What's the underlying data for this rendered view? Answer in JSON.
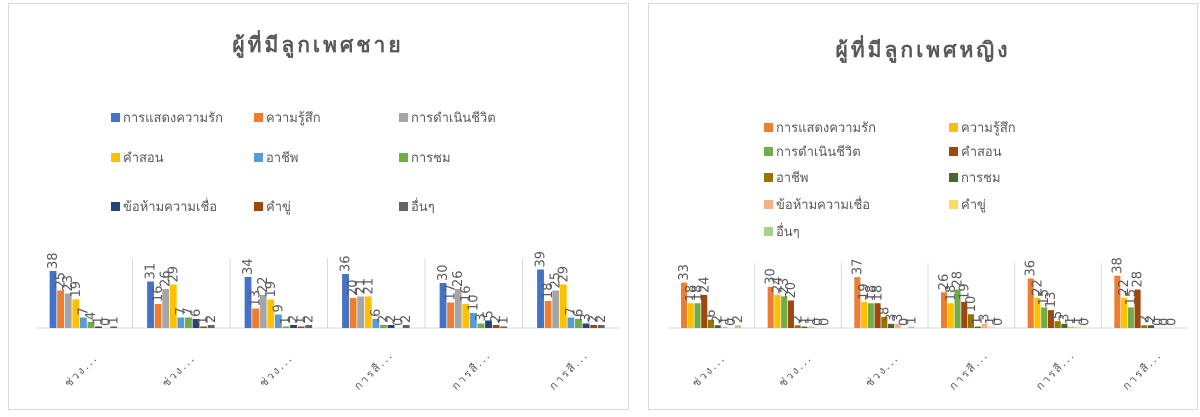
{
  "chart_data": [
    {
      "type": "bar",
      "title": "ผู้ที่มีลูกเพศชาย",
      "categories": [
        "ช่วง...",
        "ช่วง...",
        "ช่วง...",
        "การสื...",
        "การสื...",
        "การสื..."
      ],
      "ylim": [
        0,
        40
      ],
      "series": [
        {
          "name": "การแสดงความรัก",
          "color": "#4472c4",
          "values": [
            38,
            31,
            34,
            36,
            30,
            39
          ]
        },
        {
          "name": "ความรู้สึก",
          "color": "#ed7d31",
          "values": [
            25,
            16,
            13,
            20,
            17,
            18
          ]
        },
        {
          "name": "การดำเนินชีวิต",
          "color": "#a5a5a5",
          "values": [
            23,
            26,
            22,
            21,
            26,
            25
          ]
        },
        {
          "name": "คำสอน",
          "color": "#ffc000",
          "values": [
            19,
            29,
            19,
            21,
            16,
            29
          ]
        },
        {
          "name": "อาชีพ",
          "color": "#5b9bd5",
          "values": [
            7,
            7,
            9,
            6,
            10,
            7
          ]
        },
        {
          "name": "การชม",
          "color": "#70ad47",
          "values": [
            4,
            7,
            1,
            2,
            3,
            6
          ]
        },
        {
          "name": "ข้อห้ามความเชื่อ",
          "color": "#264478",
          "values": [
            1,
            6,
            2,
            2,
            5,
            3
          ]
        },
        {
          "name": "คำขู่",
          "color": "#9e480e",
          "values": [
            0,
            1,
            1,
            0,
            2,
            2
          ]
        },
        {
          "name": "อื่นๆ",
          "color": "#636363",
          "values": [
            1,
            2,
            2,
            2,
            1,
            2
          ]
        }
      ]
    },
    {
      "type": "bar",
      "title": "ผู้ที่มีลูกเพศหญิง",
      "categories": [
        "ช่วง...",
        "ช่วง...",
        "ช่วง...",
        "การสื...",
        "การสื...",
        "การสื..."
      ],
      "ylim": [
        0,
        40
      ],
      "series": [
        {
          "name": "การแสดงความรัก",
          "color": "#ed7d31",
          "values": [
            33,
            30,
            37,
            26,
            36,
            38
          ]
        },
        {
          "name": "ความรู้สึก",
          "color": "#ffc000",
          "values": [
            18,
            24,
            19,
            18,
            22,
            22
          ]
        },
        {
          "name": "การดำเนินชีวิต",
          "color": "#70ad47",
          "values": [
            18,
            23,
            18,
            28,
            15,
            15
          ]
        },
        {
          "name": "คำสอน",
          "color": "#9e480e",
          "values": [
            24,
            20,
            18,
            19,
            13,
            28
          ]
        },
        {
          "name": "อาชีพ",
          "color": "#997300",
          "values": [
            6,
            2,
            8,
            10,
            5,
            2
          ]
        },
        {
          "name": "การชม",
          "color": "#43682b",
          "values": [
            2,
            1,
            3,
            1,
            3,
            2
          ]
        },
        {
          "name": "ข้อห้ามความเชื่อ",
          "color": "#f4b183",
          "values": [
            1,
            1,
            3,
            3,
            1,
            0
          ]
        },
        {
          "name": "คำขู่",
          "color": "#ffd966",
          "values": [
            0,
            0,
            0,
            1,
            1,
            0
          ]
        },
        {
          "name": "อื่นๆ",
          "color": "#a9d18e",
          "values": [
            2,
            0,
            1,
            0,
            0,
            0
          ]
        }
      ]
    }
  ]
}
